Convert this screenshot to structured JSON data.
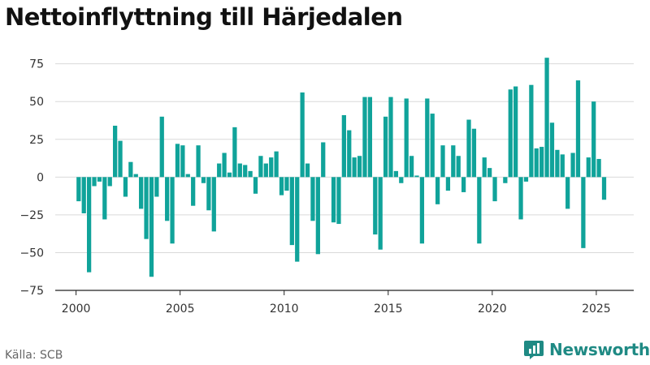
{
  "title": "Nettoinflyttning till Härjedalen",
  "source": "Källa: SCB",
  "brand": {
    "name": "Newsworthy",
    "icon": "newsworthy-logo-icon"
  },
  "colors": {
    "bar": "#10a39a",
    "axis": "#222222",
    "grid": "#d9d9d9",
    "brand": "#1f8a84"
  },
  "chart_data": {
    "type": "bar",
    "title": "",
    "xlabel": "",
    "ylabel": "",
    "frequency": "quarterly",
    "grid": true,
    "legend": "none",
    "ylim": [
      -75,
      85
    ],
    "yticks": [
      -75,
      -50,
      -25,
      0,
      25,
      50,
      75
    ],
    "ytick_labels": [
      "−75",
      "−50",
      "−25",
      "0",
      "25",
      "50",
      "75"
    ],
    "xlim": [
      1999,
      2026.8
    ],
    "xticks": [
      2000,
      2005,
      2010,
      2015,
      2020,
      2025
    ],
    "xtick_labels": [
      "2000",
      "2005",
      "2010",
      "2015",
      "2020",
      "2025"
    ],
    "start": "2000-Q1",
    "categories": [
      "2000-Q1",
      "2000-Q2",
      "2000-Q3",
      "2000-Q4",
      "2001-Q1",
      "2001-Q2",
      "2001-Q3",
      "2001-Q4",
      "2002-Q1",
      "2002-Q2",
      "2002-Q3",
      "2002-Q4",
      "2003-Q1",
      "2003-Q2",
      "2003-Q3",
      "2003-Q4",
      "2004-Q1",
      "2004-Q2",
      "2004-Q3",
      "2004-Q4",
      "2005-Q1",
      "2005-Q2",
      "2005-Q3",
      "2005-Q4",
      "2006-Q1",
      "2006-Q2",
      "2006-Q3",
      "2006-Q4",
      "2007-Q1",
      "2007-Q2",
      "2007-Q3",
      "2007-Q4",
      "2008-Q1",
      "2008-Q2",
      "2008-Q3",
      "2008-Q4",
      "2009-Q1",
      "2009-Q2",
      "2009-Q3",
      "2009-Q4",
      "2010-Q1",
      "2010-Q2",
      "2010-Q3",
      "2010-Q4",
      "2011-Q1",
      "2011-Q2",
      "2011-Q3",
      "2011-Q4",
      "2012-Q1",
      "2012-Q2",
      "2012-Q3",
      "2012-Q4",
      "2013-Q1",
      "2013-Q2",
      "2013-Q3",
      "2013-Q4",
      "2014-Q1",
      "2014-Q2",
      "2014-Q3",
      "2014-Q4",
      "2015-Q1",
      "2015-Q2",
      "2015-Q3",
      "2015-Q4",
      "2016-Q1",
      "2016-Q2",
      "2016-Q3",
      "2016-Q4",
      "2017-Q1",
      "2017-Q2",
      "2017-Q3",
      "2017-Q4",
      "2018-Q1",
      "2018-Q2",
      "2018-Q3",
      "2018-Q4",
      "2019-Q1",
      "2019-Q2",
      "2019-Q3",
      "2019-Q4",
      "2020-Q1",
      "2020-Q2",
      "2020-Q3",
      "2020-Q4",
      "2021-Q1",
      "2021-Q2",
      "2021-Q3",
      "2021-Q4",
      "2022-Q1",
      "2022-Q2",
      "2022-Q3",
      "2022-Q4",
      "2023-Q1",
      "2023-Q2",
      "2023-Q3",
      "2023-Q4",
      "2024-Q1",
      "2024-Q2",
      "2024-Q3",
      "2024-Q4",
      "2025-Q1",
      "2025-Q2"
    ],
    "values": [
      -16,
      -24,
      -63,
      -6,
      -3,
      -28,
      -6,
      34,
      24,
      -13,
      10,
      2,
      -21,
      -41,
      -66,
      -13,
      40,
      -29,
      -44,
      22,
      21,
      2,
      -19,
      21,
      -4,
      -22,
      -36,
      9,
      16,
      3,
      33,
      9,
      8,
      4,
      -11,
      14,
      9,
      13,
      17,
      -12,
      -9,
      -45,
      -56,
      56,
      9,
      -29,
      -51,
      23,
      0,
      -30,
      -31,
      41,
      31,
      13,
      14,
      53,
      53,
      -38,
      -48,
      40,
      53,
      4,
      -4,
      52,
      14,
      1,
      -44,
      52,
      42,
      -18,
      21,
      -9,
      21,
      14,
      -10,
      38,
      32,
      -44,
      13,
      6,
      -16,
      0,
      -4,
      58,
      60,
      -28,
      -3,
      61,
      19,
      20,
      79,
      36,
      18,
      15,
      -21,
      16,
      64,
      -47,
      13,
      50,
      12,
      -15
    ]
  }
}
